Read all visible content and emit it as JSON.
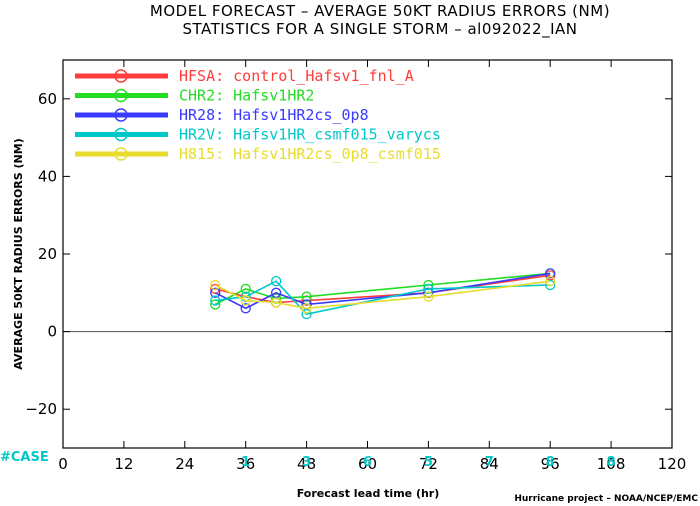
{
  "chart_data": {
    "type": "line",
    "title": "MODEL FORECAST – AVERAGE 50KT RADIUS ERRORS (NM)",
    "subtitle": "STATISTICS FOR A SINGLE STORM – al092022_IAN",
    "xlabel": "Forecast lead time (hr)",
    "ylabel": "AVERAGE 50KT RADIUS ERRORS (NM)",
    "xlim": [
      0,
      120
    ],
    "ylim": [
      -30,
      70
    ],
    "xticks": [
      0,
      12,
      24,
      36,
      48,
      60,
      72,
      84,
      96,
      108,
      120
    ],
    "yticks": [
      -20,
      0,
      20,
      40,
      60
    ],
    "grid": false,
    "legend_position": "top-left",
    "case_label": "#CASE",
    "cases": [
      {
        "x": 36,
        "n": "1"
      },
      {
        "x": 48,
        "n": "3"
      },
      {
        "x": 60,
        "n": "6"
      },
      {
        "x": 72,
        "n": "5"
      },
      {
        "x": 84,
        "n": "7"
      },
      {
        "x": 96,
        "n": "8"
      },
      {
        "x": 108,
        "n": "8"
      }
    ],
    "credit": "Hurricane project – NOAA/NCEP/EMC",
    "series": [
      {
        "name": "HFSA",
        "desc": "control_Hafsv1_fnl_A",
        "color": "#ff3c3c",
        "x": [
          30,
          36,
          42,
          48,
          72,
          96
        ],
        "y": [
          11,
          9,
          7.5,
          8,
          10,
          14.5
        ]
      },
      {
        "name": "CHR2",
        "desc": "Hafsv1HR2",
        "color": "#22dd22",
        "x": [
          30,
          36,
          42,
          48,
          72,
          96
        ],
        "y": [
          7,
          11,
          8.5,
          9,
          12,
          15
        ]
      },
      {
        "name": "HR28",
        "desc": "Hafsv1HR2cs_0p8",
        "color": "#3a3aff",
        "x": [
          30,
          36,
          42,
          48,
          72,
          96
        ],
        "y": [
          10,
          6,
          10,
          7,
          10,
          15
        ]
      },
      {
        "name": "HR2V",
        "desc": "Hafsv1HR_csmf015_varycs",
        "color": "#00c8c8",
        "x": [
          30,
          36,
          42,
          48,
          72,
          96
        ],
        "y": [
          8,
          9,
          13,
          4.5,
          11,
          12
        ]
      },
      {
        "name": "H815",
        "desc": "Hafsv1HR2cs_0p8_csmf015",
        "color": "#e8dc30",
        "x": [
          30,
          36,
          42,
          48,
          72,
          96
        ],
        "y": [
          12,
          8,
          7.5,
          6,
          9,
          13
        ]
      }
    ]
  }
}
